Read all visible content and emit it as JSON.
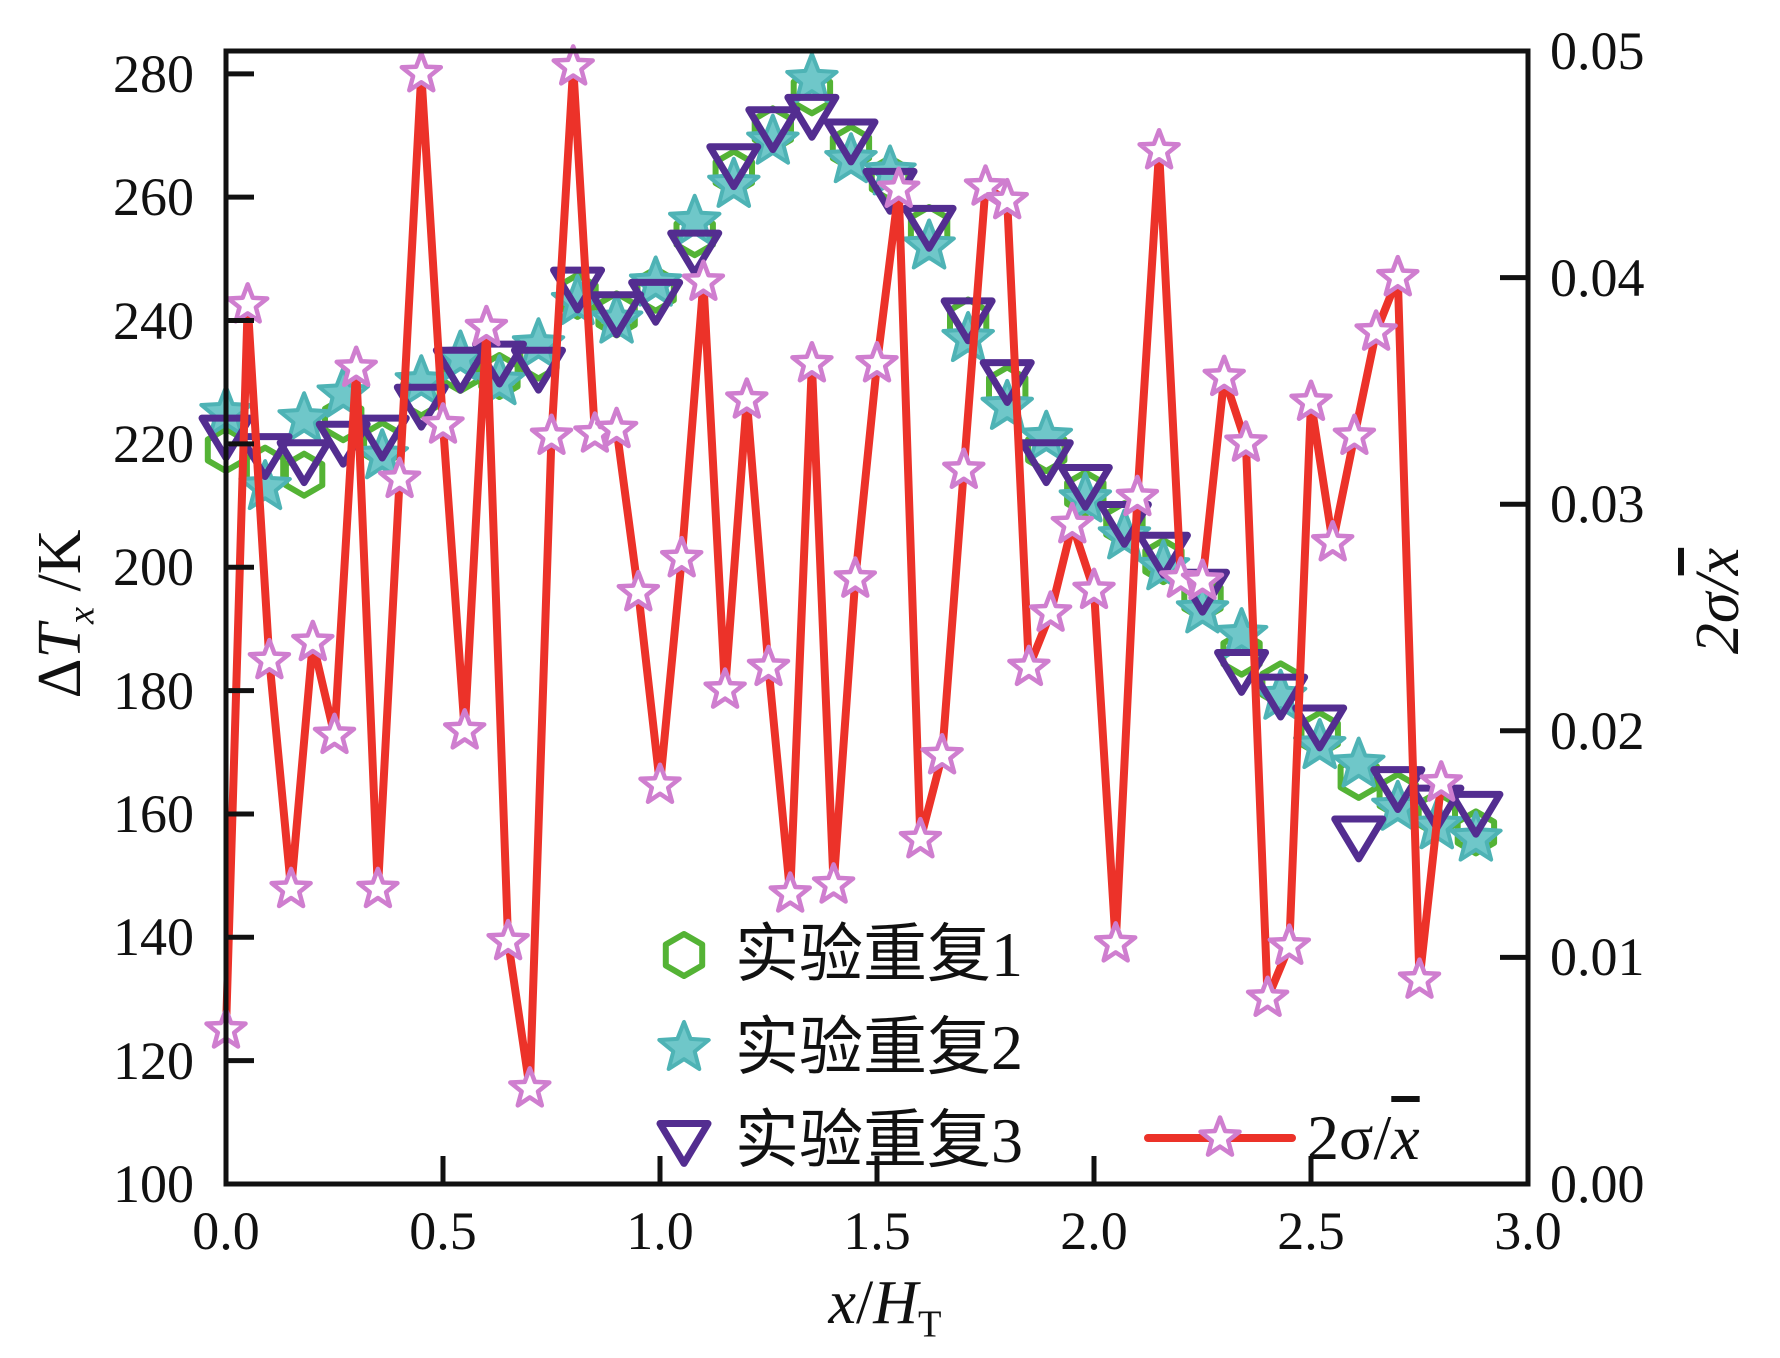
{
  "chart_data": {
    "type": "line",
    "title": "",
    "grid": false,
    "legend_position": "inside-bottom-center",
    "x_axis": {
      "label": "x/H_T",
      "label_parts": {
        "x": "x",
        "slash": "/",
        "H": "H",
        "sub": "T"
      },
      "range": [
        0.0,
        3.0
      ],
      "ticks": [
        0.0,
        0.5,
        1.0,
        1.5,
        2.0,
        2.5,
        3.0
      ],
      "tick_labels": [
        "0.0",
        "0.5",
        "1.0",
        "1.5",
        "2.0",
        "2.5",
        "3.0"
      ]
    },
    "y_left": {
      "label": "ΔT_x /K",
      "label_parts": {
        "delta": "Δ",
        "T": "T",
        "sub": "x",
        "post": " /K"
      },
      "range": [
        100,
        283.7
      ],
      "ticks": [
        100,
        120,
        140,
        160,
        180,
        200,
        220,
        240,
        260,
        280
      ],
      "tick_labels": [
        "100",
        "120",
        "140",
        "160",
        "180",
        "200",
        "220",
        "240",
        "260",
        "280"
      ]
    },
    "y_right": {
      "label": "2σ/x̄",
      "label_parts": {
        "pre": "2σ/",
        "xbar": "x"
      },
      "range": [
        0.0,
        0.05
      ],
      "ticks": [
        0.0,
        0.01,
        0.02,
        0.03,
        0.04,
        0.05
      ],
      "tick_labels": [
        "0.00",
        "0.01",
        "0.02",
        "0.03",
        "0.04",
        "0.05"
      ]
    },
    "series": [
      {
        "name": "实验重复1",
        "marker": "hexagon-open",
        "color": "#54b335",
        "axis": "left",
        "line": false,
        "x": [
          0.0,
          0.09,
          0.18,
          0.27,
          0.36,
          0.45,
          0.54,
          0.63,
          0.72,
          0.81,
          0.9,
          0.99,
          1.08,
          1.17,
          1.26,
          1.35,
          1.44,
          1.53,
          1.62,
          1.71,
          1.8,
          1.89,
          1.98,
          2.07,
          2.16,
          2.25,
          2.34,
          2.43,
          2.52,
          2.61,
          2.7,
          2.79,
          2.88
        ],
        "y": [
          219,
          216,
          215,
          224,
          220,
          228,
          232,
          231,
          234,
          244,
          241,
          245,
          254,
          264,
          271,
          277,
          268,
          263,
          255,
          240,
          229,
          219,
          212,
          207,
          201,
          195,
          186,
          181,
          173,
          166,
          163,
          160,
          157
        ]
      },
      {
        "name": "实验重复2",
        "marker": "star-filled",
        "color": "#6fc7c9",
        "stroke": "#4eb3b5",
        "axis": "left",
        "line": false,
        "x": [
          0.0,
          0.09,
          0.18,
          0.27,
          0.36,
          0.45,
          0.54,
          0.63,
          0.72,
          0.81,
          0.9,
          0.99,
          1.08,
          1.17,
          1.26,
          1.35,
          1.44,
          1.53,
          1.62,
          1.71,
          1.8,
          1.89,
          1.98,
          2.07,
          2.16,
          2.25,
          2.34,
          2.43,
          2.52,
          2.61,
          2.7,
          2.79,
          2.88
        ],
        "y": [
          225,
          213,
          224,
          228,
          218,
          230,
          234,
          230,
          236,
          243,
          240,
          246,
          256,
          262,
          269,
          279,
          266,
          264,
          252,
          237,
          226,
          221,
          211,
          205,
          200,
          193,
          189,
          179,
          171,
          168,
          161,
          158,
          156
        ]
      },
      {
        "name": "实验重复3",
        "marker": "triangle-down-open",
        "color": "#532d90",
        "axis": "left",
        "line": false,
        "x": [
          0.0,
          0.09,
          0.18,
          0.27,
          0.36,
          0.45,
          0.54,
          0.63,
          0.72,
          0.81,
          0.9,
          0.99,
          1.08,
          1.17,
          1.26,
          1.35,
          1.44,
          1.53,
          1.62,
          1.71,
          1.8,
          1.89,
          1.98,
          2.07,
          2.16,
          2.25,
          2.34,
          2.43,
          2.52,
          2.61,
          2.7,
          2.79,
          2.88
        ],
        "y": [
          222,
          219,
          218,
          221,
          222,
          227,
          233,
          234,
          233,
          246,
          242,
          244,
          252,
          266,
          272,
          274,
          270,
          262,
          256,
          241,
          231,
          218,
          214,
          208,
          203,
          197,
          184,
          180,
          175,
          157,
          165,
          162,
          161
        ]
      },
      {
        "name": "2σ/x̄",
        "marker": "star-open",
        "color": "#ec3229",
        "marker_color": "#cf7ecf",
        "axis": "right",
        "line": true,
        "x": [
          0.0,
          0.05,
          0.1,
          0.15,
          0.2,
          0.25,
          0.3,
          0.35,
          0.4,
          0.45,
          0.5,
          0.55,
          0.6,
          0.65,
          0.7,
          0.75,
          0.8,
          0.85,
          0.9,
          0.95,
          1.0,
          1.05,
          1.1,
          1.15,
          1.2,
          1.25,
          1.3,
          1.35,
          1.4,
          1.45,
          1.5,
          1.55,
          1.6,
          1.65,
          1.7,
          1.75,
          1.8,
          1.85,
          1.9,
          1.95,
          2.0,
          2.05,
          2.1,
          2.15,
          2.2,
          2.25,
          2.3,
          2.35,
          2.4,
          2.45,
          2.5,
          2.55,
          2.6,
          2.65,
          2.7,
          2.75,
          2.8
        ],
        "y": [
          0.0068,
          0.0388,
          0.0231,
          0.013,
          0.0239,
          0.0198,
          0.036,
          0.013,
          0.0311,
          0.049,
          0.0335,
          0.02,
          0.0378,
          0.0107,
          0.0042,
          0.033,
          0.0493,
          0.0331,
          0.0333,
          0.0261,
          0.0176,
          0.0276,
          0.0398,
          0.0218,
          0.0346,
          0.0228,
          0.0128,
          0.0362,
          0.0132,
          0.0267,
          0.0362,
          0.0439,
          0.0152,
          0.0189,
          0.0315,
          0.044,
          0.0434,
          0.0228,
          0.0252,
          0.0291,
          0.0262,
          0.0106,
          0.0303,
          0.0456,
          0.0267,
          0.0266,
          0.0356,
          0.0327,
          0.0082,
          0.0105,
          0.0345,
          0.0283,
          0.033,
          0.0376,
          0.04,
          0.009,
          0.0177
        ]
      }
    ],
    "legend": {
      "entries": [
        "实验重复1",
        "实验重复2",
        "实验重复3",
        "2σ/x̄"
      ]
    },
    "colors": {
      "rep1_green": "#54b335",
      "rep2_teal": "#6fc7c9",
      "rep3_purple": "#532d90",
      "sigma_red": "#ec3229",
      "sigma_star_outline": "#cf7ecf",
      "axis_black": "#111111"
    }
  }
}
